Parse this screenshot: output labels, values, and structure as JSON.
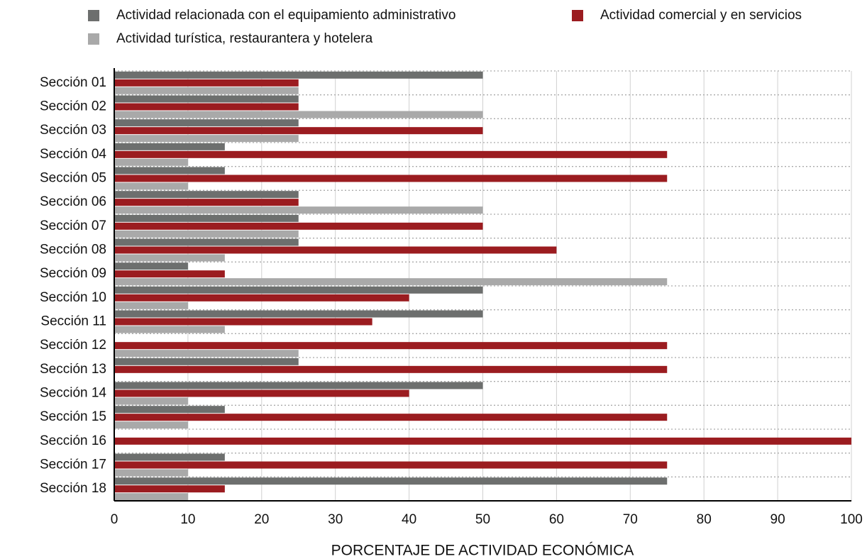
{
  "chart_data": {
    "type": "barh",
    "xlabel": "PORCENTAJE DE ACTIVIDAD ECONÓMICA",
    "categories": [
      "Sección 01",
      "Sección 02",
      "Sección 03",
      "Sección 04",
      "Sección 05",
      "Sección 06",
      "Sección 07",
      "Sección 08",
      "Sección 09",
      "Sección 10",
      "Sección 11",
      "Sección 12",
      "Sección 13",
      "Sección 14",
      "Sección 15",
      "Sección 16",
      "Sección 17",
      "Sección 18"
    ],
    "series": [
      {
        "name": "Actividad relacionada con el equipamiento administrativo",
        "color": "#6d6f6e",
        "values": [
          50,
          25,
          25,
          15,
          15,
          25,
          25,
          25,
          10,
          50,
          50,
          0,
          25,
          50,
          15,
          0,
          15,
          75
        ]
      },
      {
        "name": "Actividad comercial y en servicios",
        "color": "#9b1c20",
        "values": [
          25,
          25,
          50,
          75,
          75,
          25,
          50,
          60,
          15,
          40,
          35,
          75,
          75,
          40,
          75,
          100,
          75,
          15
        ]
      },
      {
        "name": "Actividad turística, restaurantera y hotelera",
        "color": "#a9a9a9",
        "values": [
          25,
          50,
          25,
          10,
          10,
          50,
          25,
          15,
          75,
          10,
          15,
          25,
          0,
          10,
          10,
          0,
          10,
          10
        ]
      }
    ],
    "xlim": [
      0,
      100
    ],
    "xticks": [
      0,
      10,
      20,
      30,
      40,
      50,
      60,
      70,
      80,
      90,
      100
    ],
    "grid": true
  }
}
